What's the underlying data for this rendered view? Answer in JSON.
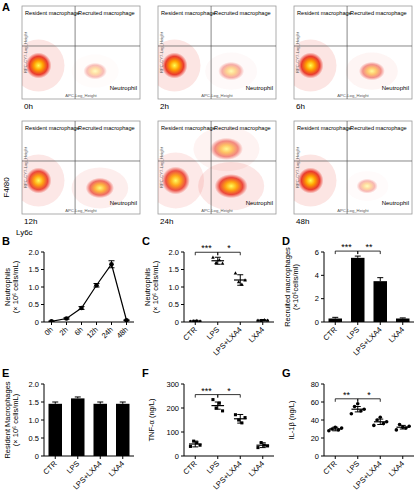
{
  "chart_data": [
    {
      "type": "flow",
      "panel_label": "A",
      "x_label": "Ly6c",
      "y_label": "F4/80",
      "plot_x_label": "APC-Log_Height",
      "plot_y_label": "RPC-CY7-Log_Height",
      "quadrant_labels": [
        "Resident macrophage",
        "Recruited macrophage",
        "Neutrophil"
      ],
      "xlim": [
        0,
        100
      ],
      "ylim": [
        0,
        100
      ],
      "tick_labels": false,
      "gate": {
        "x": 45,
        "y": 57
      },
      "plots": [
        {
          "title": "0h",
          "clusters": [
            {
              "x": 14,
              "y": 36,
              "sx": 11,
              "sy": 14,
              "density": 1
            },
            {
              "x": 62,
              "y": 30,
              "sx": 10,
              "sy": 9,
              "density": 0.12
            }
          ]
        },
        {
          "title": "2h",
          "clusters": [
            {
              "x": 14,
              "y": 36,
              "sx": 11,
              "sy": 14,
              "density": 1
            },
            {
              "x": 62,
              "y": 30,
              "sx": 11,
              "sy": 10,
              "density": 0.22
            }
          ]
        },
        {
          "title": "6h",
          "clusters": [
            {
              "x": 14,
              "y": 36,
              "sx": 11,
              "sy": 14,
              "density": 1
            },
            {
              "x": 66,
              "y": 30,
              "sx": 11,
              "sy": 10,
              "density": 0.4
            }
          ]
        },
        {
          "title": "12h",
          "clusters": [
            {
              "x": 14,
              "y": 36,
              "sx": 11,
              "sy": 14,
              "density": 0.9
            },
            {
              "x": 66,
              "y": 28,
              "sx": 12,
              "sy": 11,
              "density": 0.65
            }
          ]
        },
        {
          "title": "24h",
          "clusters": [
            {
              "x": 15,
              "y": 36,
              "sx": 12,
              "sy": 15,
              "density": 0.85
            },
            {
              "x": 62,
              "y": 30,
              "sx": 14,
              "sy": 13,
              "density": 0.9
            },
            {
              "x": 58,
              "y": 70,
              "sx": 14,
              "sy": 12,
              "density": 0.45
            }
          ]
        },
        {
          "title": "48h",
          "clusters": [
            {
              "x": 14,
              "y": 36,
              "sx": 11,
              "sy": 14,
              "density": 1
            },
            {
              "x": 62,
              "y": 30,
              "sx": 9,
              "sy": 8,
              "density": 0.15
            }
          ]
        }
      ]
    },
    {
      "type": "line",
      "panel_label": "B",
      "y_label": [
        "Neutrophils",
        "(× 10⁶ cells/mL)"
      ],
      "categories": [
        "0h",
        "2h",
        "6h",
        "12h",
        "24h",
        "48h"
      ],
      "values": [
        0.02,
        0.1,
        0.4,
        1.05,
        1.65,
        0.05
      ],
      "errors": [
        0.01,
        0.02,
        0.04,
        0.05,
        0.1,
        0.01
      ],
      "color": "#000000",
      "marker": "circle",
      "ylim": [
        0,
        2
      ],
      "yticks": [
        0,
        0.5,
        {
          "value": 1,
          "label": "1.0"
        },
        1.5,
        {
          "value": 2,
          "label": "2.0"
        }
      ]
    },
    {
      "type": "dot",
      "panel_label": "C",
      "y_label": [
        "Neutrophils",
        "(× 10⁶ cells/mL)"
      ],
      "categories": [
        "CTR",
        "LPS",
        "LPS+LXA4",
        "LXA4"
      ],
      "values": [
        0.03,
        1.75,
        1.2,
        0.05
      ],
      "errors": [
        0.02,
        0.1,
        0.15,
        0.02
      ],
      "points": [
        [
          0.02,
          0.03,
          0.04,
          0.03
        ],
        [
          1.85,
          1.7,
          1.78,
          1.68
        ],
        [
          1.4,
          1.15,
          1.08,
          1.2
        ],
        [
          0.05,
          0.04,
          0.06,
          0.05
        ]
      ],
      "color": "#000000",
      "marker": "triangle",
      "significance": [
        {
          "from": 0,
          "to": 1,
          "label": "***"
        },
        {
          "from": 1,
          "to": 2,
          "label": "*"
        }
      ],
      "ylim": [
        0,
        2
      ],
      "yticks": [
        0,
        0.5,
        {
          "value": 1,
          "label": "1.0"
        },
        1.5,
        {
          "value": 2,
          "label": "2.0"
        }
      ]
    },
    {
      "type": "bar",
      "panel_label": "D",
      "y_label": [
        "Recruited macrophages",
        "(×10⁶cells/ml)"
      ],
      "categories": [
        "CTR",
        "LPS",
        "LPS+LXA4",
        "LXA4"
      ],
      "values": [
        0.3,
        5.5,
        3.5,
        0.3
      ],
      "errors": [
        0.1,
        0.15,
        0.3,
        0.05
      ],
      "color": "#000000",
      "significance": [
        {
          "from": 0,
          "to": 1,
          "label": "***"
        },
        {
          "from": 1,
          "to": 2,
          "label": "**"
        }
      ],
      "ylim": [
        0,
        6
      ],
      "yticks": [
        0,
        2,
        4,
        6
      ]
    },
    {
      "type": "bar",
      "panel_label": "E",
      "y_label": [
        "Resident Macrophages",
        "(× 10⁶ cells/mL)"
      ],
      "categories": [
        "CTR",
        "LPS",
        "LPS+LXA4",
        "LXA4"
      ],
      "values": [
        1.45,
        1.6,
        1.45,
        1.45
      ],
      "errors": [
        0.05,
        0.04,
        0.05,
        0.05
      ],
      "color": "#000000",
      "ylim": [
        0,
        2
      ],
      "yticks": [
        0,
        0.5,
        {
          "value": 1,
          "label": "1.0"
        },
        1.5,
        {
          "value": 2,
          "label": "2.0"
        }
      ]
    },
    {
      "type": "dot",
      "panel_label": "F",
      "y_label": [
        "TNF-α (ng/L)"
      ],
      "categories": [
        "CTR",
        "LPS",
        "LPS+LXA4",
        "LXA4"
      ],
      "values": [
        50,
        210,
        155,
        45
      ],
      "errors": [
        12,
        15,
        18,
        10
      ],
      "points": [
        [
          40,
          62,
          55,
          45
        ],
        [
          235,
          200,
          220,
          188
        ],
        [
          172,
          150,
          138,
          160
        ],
        [
          35,
          56,
          45,
          42
        ]
      ],
      "color": "#000000",
      "marker": "square",
      "significance": [
        {
          "from": 0,
          "to": 1,
          "label": "***"
        },
        {
          "from": 1,
          "to": 2,
          "label": "*"
        }
      ],
      "ylim": [
        0,
        300
      ],
      "yticks": [
        0,
        100,
        200,
        300
      ]
    },
    {
      "type": "dot",
      "panel_label": "G",
      "y_label": [
        "IL-1β (ng/L)"
      ],
      "categories": [
        "CTR",
        "LPS",
        "LPS+LXA4",
        "LXA4"
      ],
      "values": [
        30,
        52,
        38,
        32
      ],
      "errors": [
        2,
        3,
        3,
        2
      ],
      "points": [
        [
          28,
          30,
          32,
          29,
          31
        ],
        [
          47,
          55,
          58,
          50,
          52
        ],
        [
          34,
          40,
          43,
          36,
          38
        ],
        [
          29,
          35,
          32,
          31,
          33
        ]
      ],
      "color": "#000000",
      "marker": "circle",
      "significance": [
        {
          "from": 0,
          "to": 1,
          "label": "**"
        },
        {
          "from": 1,
          "to": 2,
          "label": "*"
        }
      ],
      "ylim": [
        0,
        80
      ],
      "yticks": [
        0,
        20,
        40,
        60,
        80
      ]
    }
  ]
}
